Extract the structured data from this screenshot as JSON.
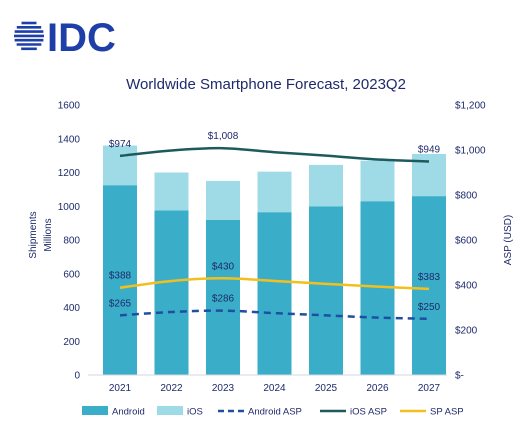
{
  "logo": {
    "text": "IDC",
    "color": "#1f3fa8"
  },
  "colors": {
    "android": "#3aaec9",
    "ios": "#9fdbe6",
    "android_asp": "#1f4fa0",
    "ios_asp": "#1d5a5e",
    "sp_asp": "#f2c01e",
    "text": "#1f2a6b"
  },
  "chart_data": {
    "type": "bar",
    "title": "Worldwide Smartphone Forecast, 2023Q2",
    "categories": [
      "2021",
      "2022",
      "2023",
      "2024",
      "2025",
      "2026",
      "2027"
    ],
    "stacked": true,
    "series": [
      {
        "name": "Android",
        "type": "bar",
        "axis": "left",
        "values": [
          1125,
          975,
          920,
          965,
          1000,
          1030,
          1060
        ]
      },
      {
        "name": "iOS",
        "type": "bar",
        "axis": "left",
        "values": [
          235,
          225,
          230,
          240,
          245,
          240,
          250
        ]
      },
      {
        "name": "Android ASP",
        "type": "line",
        "style": "dashed",
        "axis": "right",
        "values": [
          265,
          280,
          286,
          275,
          265,
          255,
          250
        ]
      },
      {
        "name": "iOS ASP",
        "type": "line",
        "axis": "right",
        "values": [
          974,
          998,
          1008,
          990,
          975,
          958,
          949
        ]
      },
      {
        "name": "SP ASP",
        "type": "line",
        "axis": "right",
        "values": [
          388,
          418,
          430,
          418,
          405,
          393,
          383
        ]
      }
    ],
    "y_left": {
      "label": "Shipments Millions",
      "label_lines": [
        "Shipments",
        "Millions"
      ],
      "ylim": [
        0,
        1600
      ],
      "ticks": [
        "0",
        "200",
        "400",
        "600",
        "800",
        "1000",
        "1200",
        "1400",
        "1600"
      ]
    },
    "y_right": {
      "label": "ASP (USD)",
      "ylim": [
        0,
        1200
      ],
      "ticks": [
        "$-",
        "$200",
        "$400",
        "$600",
        "$800",
        "$1,000",
        "$1,200"
      ]
    },
    "data_labels": [
      {
        "series": "iOS ASP",
        "index": 0,
        "text": "$974"
      },
      {
        "series": "iOS ASP",
        "index": 2,
        "text": "$1,008"
      },
      {
        "series": "iOS ASP",
        "index": 6,
        "text": "$949"
      },
      {
        "series": "SP ASP",
        "index": 0,
        "text": "$388"
      },
      {
        "series": "SP ASP",
        "index": 2,
        "text": "$430"
      },
      {
        "series": "SP ASP",
        "index": 6,
        "text": "$383"
      },
      {
        "series": "Android ASP",
        "index": 0,
        "text": "$265"
      },
      {
        "series": "Android ASP",
        "index": 2,
        "text": "$286"
      },
      {
        "series": "Android ASP",
        "index": 6,
        "text": "$250"
      }
    ],
    "legend": [
      "Android",
      "iOS",
      "Android ASP",
      "iOS ASP",
      "SP ASP"
    ],
    "legend_position": "bottom",
    "grid": false
  }
}
